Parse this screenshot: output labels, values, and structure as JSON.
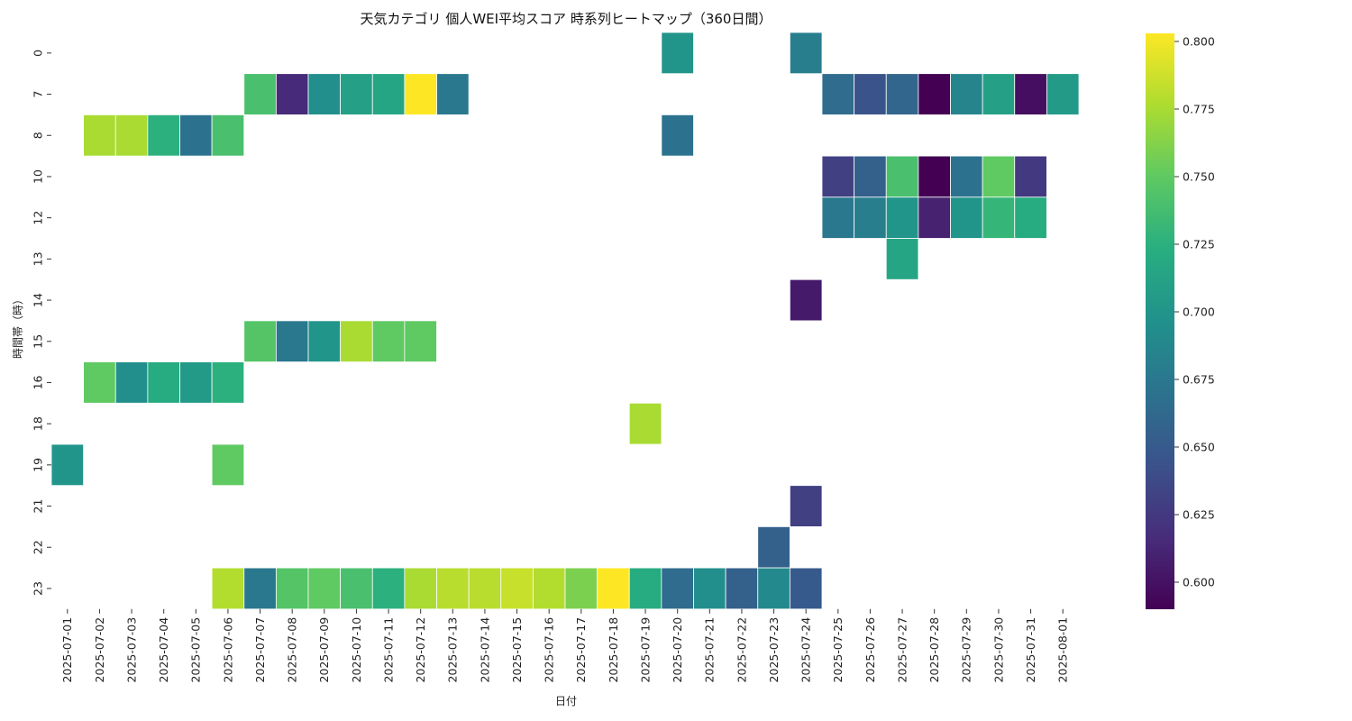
{
  "chart_data": {
    "type": "heatmap",
    "title": "天気カテゴリ 個人WEI平均スコア 時系列ヒートマップ（360日間）",
    "xlabel": "日付",
    "ylabel": "時間帯（時）",
    "x": [
      "2025-07-01",
      "2025-07-02",
      "2025-07-03",
      "2025-07-04",
      "2025-07-05",
      "2025-07-06",
      "2025-07-07",
      "2025-07-08",
      "2025-07-09",
      "2025-07-10",
      "2025-07-11",
      "2025-07-12",
      "2025-07-13",
      "2025-07-14",
      "2025-07-15",
      "2025-07-16",
      "2025-07-17",
      "2025-07-18",
      "2025-07-19",
      "2025-07-20",
      "2025-07-21",
      "2025-07-22",
      "2025-07-23",
      "2025-07-24",
      "2025-07-25",
      "2025-07-26",
      "2025-07-27",
      "2025-07-28",
      "2025-07-29",
      "2025-07-30",
      "2025-07-31",
      "2025-08-01"
    ],
    "y": [
      "0",
      "7",
      "8",
      "10",
      "12",
      "13",
      "14",
      "15",
      "16",
      "18",
      "19",
      "21",
      "22",
      "23"
    ],
    "values": [
      [
        null,
        null,
        null,
        null,
        null,
        null,
        null,
        null,
        null,
        null,
        null,
        null,
        null,
        null,
        null,
        null,
        null,
        null,
        null,
        0.7,
        null,
        null,
        null,
        0.68,
        null,
        null,
        null,
        null,
        null,
        null,
        null,
        null
      ],
      [
        null,
        null,
        null,
        null,
        null,
        null,
        0.74,
        0.615,
        0.695,
        0.71,
        0.715,
        0.803,
        0.675,
        null,
        null,
        null,
        null,
        null,
        null,
        null,
        null,
        null,
        null,
        null,
        0.665,
        0.645,
        0.66,
        0.59,
        0.685,
        0.71,
        0.598,
        0.705
      ],
      [
        null,
        0.775,
        0.775,
        0.725,
        0.67,
        0.74,
        null,
        null,
        null,
        null,
        null,
        null,
        null,
        null,
        null,
        null,
        null,
        null,
        null,
        0.67,
        null,
        null,
        null,
        null,
        null,
        null,
        null,
        null,
        null,
        null,
        null,
        null
      ],
      [
        null,
        null,
        null,
        null,
        null,
        null,
        null,
        null,
        null,
        null,
        null,
        null,
        null,
        null,
        null,
        null,
        null,
        null,
        null,
        null,
        null,
        null,
        null,
        null,
        0.63,
        0.655,
        0.74,
        0.59,
        0.67,
        0.75,
        0.625,
        null
      ],
      [
        null,
        null,
        null,
        null,
        null,
        null,
        null,
        null,
        null,
        null,
        null,
        null,
        null,
        null,
        null,
        null,
        null,
        null,
        null,
        null,
        null,
        null,
        null,
        null,
        0.675,
        0.68,
        0.7,
        0.61,
        0.7,
        0.73,
        0.72,
        null
      ],
      [
        null,
        null,
        null,
        null,
        null,
        null,
        null,
        null,
        null,
        null,
        null,
        null,
        null,
        null,
        null,
        null,
        null,
        null,
        null,
        null,
        null,
        null,
        null,
        null,
        null,
        null,
        0.715,
        null,
        null,
        null,
        null,
        null
      ],
      [
        null,
        null,
        null,
        null,
        null,
        null,
        null,
        null,
        null,
        null,
        null,
        null,
        null,
        null,
        null,
        null,
        null,
        null,
        null,
        null,
        null,
        null,
        null,
        0.605,
        null,
        null,
        null,
        null,
        null,
        null,
        null,
        null
      ],
      [
        null,
        null,
        null,
        null,
        null,
        null,
        0.745,
        0.675,
        0.7,
        0.775,
        0.75,
        0.75,
        null,
        null,
        null,
        null,
        null,
        null,
        null,
        null,
        null,
        null,
        null,
        null,
        null,
        null,
        null,
        null,
        null,
        null,
        null,
        null
      ],
      [
        null,
        0.75,
        0.695,
        0.72,
        0.705,
        0.725,
        null,
        null,
        null,
        null,
        null,
        null,
        null,
        null,
        null,
        null,
        null,
        null,
        null,
        null,
        null,
        null,
        null,
        null,
        null,
        null,
        null,
        null,
        null,
        null,
        null,
        null
      ],
      [
        null,
        null,
        null,
        null,
        null,
        null,
        null,
        null,
        null,
        null,
        null,
        null,
        null,
        null,
        null,
        null,
        null,
        null,
        0.775,
        null,
        null,
        null,
        null,
        null,
        null,
        null,
        null,
        null,
        null,
        null,
        null,
        null
      ],
      [
        0.7,
        null,
        null,
        null,
        null,
        0.75,
        null,
        null,
        null,
        null,
        null,
        null,
        null,
        null,
        null,
        null,
        null,
        null,
        null,
        null,
        null,
        null,
        null,
        null,
        null,
        null,
        null,
        null,
        null,
        null,
        null,
        null
      ],
      [
        null,
        null,
        null,
        null,
        null,
        null,
        null,
        null,
        null,
        null,
        null,
        null,
        null,
        null,
        null,
        null,
        null,
        null,
        null,
        null,
        null,
        null,
        null,
        0.63,
        null,
        null,
        null,
        null,
        null,
        null,
        null,
        null
      ],
      [
        null,
        null,
        null,
        null,
        null,
        null,
        null,
        null,
        null,
        null,
        null,
        null,
        null,
        null,
        null,
        null,
        null,
        null,
        null,
        null,
        null,
        null,
        0.655,
        null,
        null,
        null,
        null,
        null,
        null,
        null,
        null,
        null
      ],
      [
        null,
        null,
        null,
        null,
        null,
        0.778,
        0.675,
        0.745,
        0.75,
        0.74,
        0.725,
        0.775,
        0.78,
        0.78,
        0.785,
        0.778,
        0.76,
        0.803,
        0.72,
        0.665,
        0.695,
        0.655,
        0.69,
        0.65,
        null,
        null,
        null,
        null,
        null,
        null,
        null,
        null
      ]
    ],
    "colorbar": {
      "colormap": "viridis",
      "range": [
        0.59,
        0.803
      ],
      "ticks": [
        "0.600",
        "0.625",
        "0.650",
        "0.675",
        "0.700",
        "0.725",
        "0.750",
        "0.775",
        "0.800"
      ]
    },
    "grid": false
  }
}
